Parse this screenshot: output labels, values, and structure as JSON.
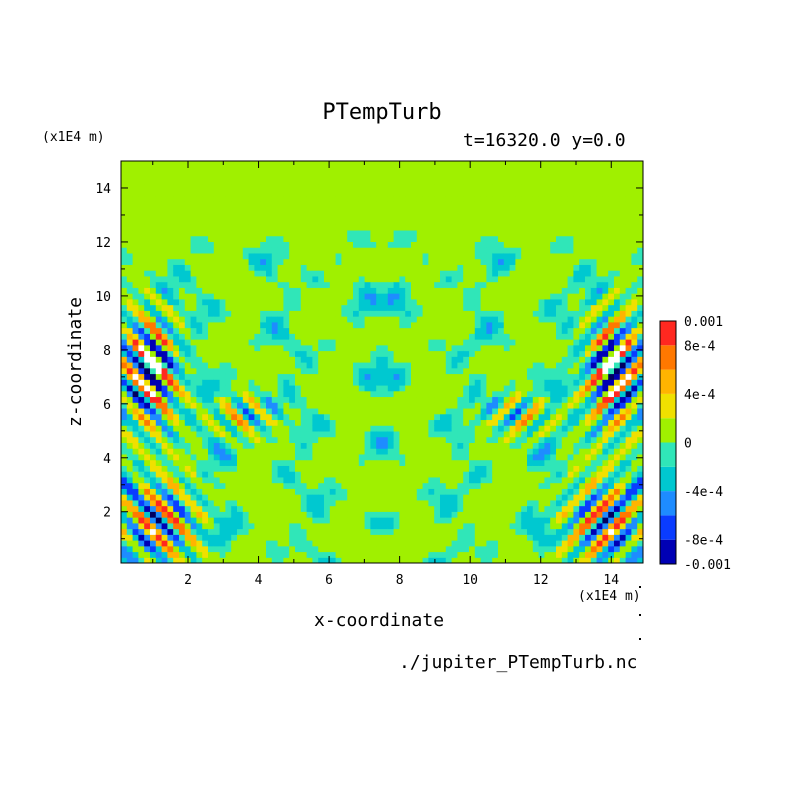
{
  "chart_data": {
    "type": "heatmap",
    "title": "PTempTurb",
    "subtitle": "t=16320.0 y=0.0",
    "xlabel": "x-coordinate",
    "ylabel": "z-coordinate",
    "x_units": "(x1E4 m)",
    "y_units": "(x1E4 m)",
    "xlim": [
      0.1,
      14.9
    ],
    "ylim": [
      0.1,
      15.0
    ],
    "x_ticks": [
      "2",
      "4",
      "6",
      "8",
      "10",
      "12",
      "14"
    ],
    "y_ticks": [
      "2",
      "4",
      "6",
      "8",
      "10",
      "12",
      "14"
    ],
    "x_tick_values": [
      2,
      4,
      6,
      8,
      10,
      12,
      14
    ],
    "y_tick_values": [
      2,
      4,
      6,
      8,
      10,
      12,
      14
    ],
    "colorbar": {
      "levels": [
        -0.001,
        -0.0008,
        -0.0006,
        -0.0004,
        -0.0002,
        0,
        0.0002,
        0.0004,
        0.0006,
        0.0008,
        0.001
      ],
      "colors": [
        "#0000b4",
        "#0a3cff",
        "#1e8cff",
        "#00c8d0",
        "#30e6b8",
        "#a0f000",
        "#f0e000",
        "#ffb400",
        "#ff7800",
        "#ff2820",
        "#ff6a6a"
      ],
      "tick_labels": [
        "0.001",
        "8e-4",
        "4e-4",
        "0",
        "-4e-4",
        "-8e-4",
        "-0.001"
      ],
      "tick_values": [
        0.001,
        0.0008,
        0.0004,
        0,
        -0.0004,
        -0.0008,
        -0.001
      ]
    },
    "background_value": 0.0,
    "notes": "Turbulent potential temperature perturbation field, nearly mirror-symmetric about x=7.5; quiescent (~0) above z≈12.5; strongest +/- anomalies near side boundaries at z≈5–9 and z≈0–3."
  },
  "footer": "./jupiter_PTempTurb.nc"
}
